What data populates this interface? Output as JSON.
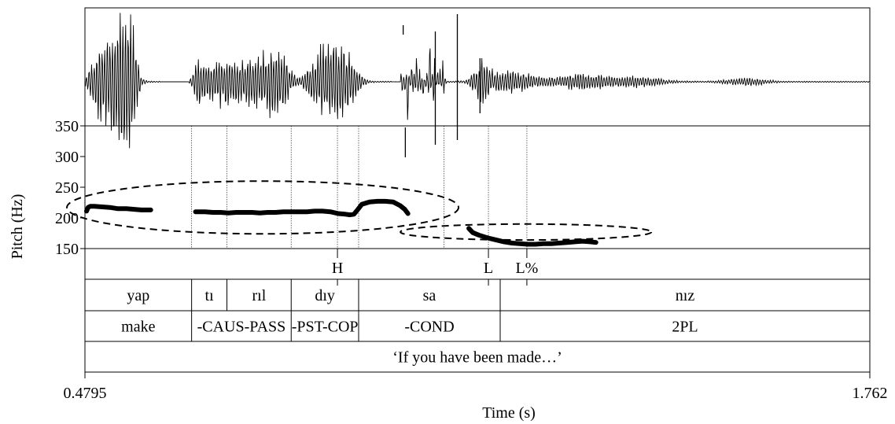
{
  "chart_data": {
    "type": "line",
    "xlabel": "Time (s)",
    "ylabel": "Pitch (Hz)",
    "xlim": [
      0.4795,
      1.762
    ],
    "ylim": [
      150,
      350
    ],
    "x_tick_labels": [
      "0.4795",
      "1.762"
    ],
    "y_ticks": [
      150,
      200,
      250,
      300,
      350
    ],
    "y_tick_labels": [
      "150",
      "200",
      "250",
      "300",
      "350"
    ],
    "pitch_series": [
      {
        "x": [
          0.4821,
          0.4847,
          0.4885,
          0.4949,
          0.5077,
          0.5205,
          0.5333,
          0.5474,
          0.5602,
          0.5717,
          0.582,
          0.5871
        ],
        "y": [
          211,
          217,
          219,
          219,
          218,
          217,
          215,
          215,
          214,
          213,
          213,
          213
        ]
      },
      {
        "x": [
          0.6602,
          0.6756,
          0.6884,
          0.7012,
          0.714,
          0.7268,
          0.7397,
          0.7525,
          0.7653,
          0.7781,
          0.7909,
          0.8037,
          0.8165,
          0.8293,
          0.8421,
          0.8549,
          0.8677,
          0.8805,
          0.8934,
          0.905,
          0.9126,
          0.919,
          0.9241,
          0.9318,
          0.9446,
          0.9574,
          0.9702,
          0.983,
          0.9945,
          1.0022,
          1.0073
        ],
        "y": [
          210,
          210,
          209,
          209,
          208,
          209,
          209,
          209,
          208,
          209,
          209,
          210,
          210,
          210,
          210,
          211,
          211,
          210,
          207,
          206,
          205,
          206,
          212,
          222,
          226,
          227,
          227,
          226,
          220,
          214,
          207
        ]
      },
      {
        "x": [
          1.1068,
          1.1132,
          1.1229,
          1.1388,
          1.1517,
          1.1645,
          1.1773,
          1.1901,
          1.2029,
          1.2157,
          1.2285,
          1.2413,
          1.2541,
          1.267,
          1.2798,
          1.2926,
          1.3054,
          1.3144
        ],
        "y": [
          183,
          176,
          172,
          167,
          164,
          161,
          159,
          158,
          157,
          157,
          158,
          158,
          159,
          160,
          161,
          162,
          161,
          160
        ]
      }
    ],
    "ellipses": [
      {
        "cx": 0.77,
        "cy": 217,
        "rx": 0.32,
        "ry": 43
      },
      {
        "cx": 1.2,
        "cy": 177,
        "rx": 0.205,
        "ry": 13
      }
    ],
    "boundaries": [
      0.6538,
      0.7115,
      0.8165,
      0.8921,
      0.9267,
      1.0663,
      1.1388,
      1.2016
    ],
    "tiers": {
      "tones": [
        {
          "label": "H",
          "x": 0.8921
        },
        {
          "label": "L",
          "x": 1.1388
        },
        {
          "label": "L%",
          "x": 1.2016
        }
      ],
      "syllables": [
        {
          "label": "yap",
          "start": 0.4795,
          "end": 0.6538
        },
        {
          "label": "tı",
          "start": 0.6538,
          "end": 0.7115
        },
        {
          "label": "rıl",
          "start": 0.7115,
          "end": 0.8165
        },
        {
          "label": "dıy",
          "start": 0.8165,
          "end": 0.9267
        },
        {
          "label": "sa",
          "start": 0.9267,
          "end": 1.158
        },
        {
          "label": "nız",
          "start": 1.158,
          "end": 1.762
        }
      ],
      "gloss": [
        {
          "label": "make",
          "start": 0.4795,
          "end": 0.6538
        },
        {
          "label": "-CAUS-PASS",
          "start": 0.6538,
          "end": 0.8165
        },
        {
          "label": "-PST-COP",
          "start": 0.8165,
          "end": 0.9267
        },
        {
          "label": "-COND",
          "start": 0.9267,
          "end": 1.158
        },
        {
          "label": "2PL",
          "start": 1.158,
          "end": 1.762
        }
      ],
      "translation": [
        {
          "label": "‘If you have been made…’",
          "start": 0.4795,
          "end": 1.762
        }
      ]
    }
  }
}
